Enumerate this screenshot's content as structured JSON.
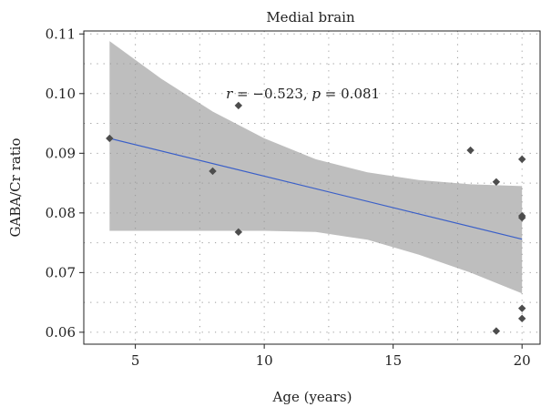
{
  "chart_data": {
    "type": "scatter",
    "title": "Medial brain",
    "xlabel": "Age (years)",
    "ylabel": "GABA/Cr ratio",
    "xlim": [
      3,
      20.7
    ],
    "ylim": [
      0.058,
      0.1105
    ],
    "xticks": [
      5,
      10,
      15,
      20
    ],
    "yticks": [
      0.06,
      0.07,
      0.08,
      0.09,
      0.1,
      0.11
    ],
    "ytick_labels": [
      "0.06",
      "0.07",
      "0.08",
      "0.09",
      "0.10",
      "0.11"
    ],
    "grid": true,
    "points": [
      {
        "x": 4,
        "y": 0.0925
      },
      {
        "x": 8,
        "y": 0.087
      },
      {
        "x": 9,
        "y": 0.098
      },
      {
        "x": 9,
        "y": 0.0768
      },
      {
        "x": 18,
        "y": 0.0905
      },
      {
        "x": 19,
        "y": 0.0852
      },
      {
        "x": 19,
        "y": 0.0602
      },
      {
        "x": 20,
        "y": 0.089
      },
      {
        "x": 20,
        "y": 0.0795
      },
      {
        "x": 20,
        "y": 0.0792
      },
      {
        "x": 20,
        "y": 0.064
      },
      {
        "x": 20,
        "y": 0.0623
      }
    ],
    "fit_line": {
      "x": [
        4,
        20
      ],
      "y": [
        0.0925,
        0.0756
      ]
    },
    "confidence_band": {
      "x": [
        4,
        6,
        8,
        10,
        12,
        14,
        16,
        18,
        20
      ],
      "upper": [
        0.1088,
        0.1025,
        0.097,
        0.0925,
        0.089,
        0.0868,
        0.0855,
        0.0848,
        0.0845
      ],
      "lower": [
        0.077,
        0.077,
        0.077,
        0.077,
        0.0768,
        0.0755,
        0.073,
        0.07,
        0.0665
      ]
    },
    "annotation": {
      "r_label": "r",
      "r_text": " = −0.523, ",
      "p_label": "p",
      "p_text": " = 0.081",
      "x": 11.5,
      "y": 0.1
    },
    "colors": {
      "point": "#4d4d4d",
      "line": "#3a5fc8",
      "band": "#bebebe",
      "grid": "#9a9a9a"
    }
  }
}
